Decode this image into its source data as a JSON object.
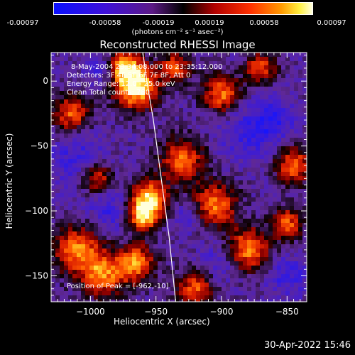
{
  "colorbar": {
    "ticks": [
      "-0.00097",
      "-0.00058",
      "-0.00019",
      "0.00019",
      "0.00058",
      "0.00097"
    ],
    "units": "(photons cm⁻² s⁻¹ asec⁻²)"
  },
  "chart_data": {
    "type": "heatmap",
    "title": "Reconstructed RHESSI Image",
    "xlabel": "Heliocentric X (arcsec)",
    "ylabel": "Heliocentric Y (arcsec)",
    "xlim": [
      -1030,
      -835
    ],
    "ylim": [
      -170,
      22
    ],
    "x_ticks": [
      -1000,
      -950,
      -900,
      -850
    ],
    "y_ticks": [
      0,
      -50,
      -100,
      -150
    ],
    "x_tick_labels": [
      "−1000",
      "−950",
      "−900",
      "−850"
    ],
    "y_tick_labels": [
      "0",
      "−50",
      "−100",
      "−150"
    ],
    "color_range": [
      -0.00097,
      0.00097
    ],
    "peak_position": [
      -962,
      -10
    ],
    "annotations": [
      "8-May-2004 23:34:08.000 to 23:35:12.000",
      "Detectors: 3F 4F 5F 6F 7F 8F, Att 0",
      "Energy Range: 12.0 - 25.0 keV",
      "Clean    Total counts: 780.",
      "Position of Peak = [-962,-10]"
    ],
    "limb_curve": [
      [
        -960,
        22
      ],
      [
        -957,
        0
      ],
      [
        -952,
        -30
      ],
      [
        -948,
        -60
      ],
      [
        -944,
        -90
      ],
      [
        -940,
        -120
      ],
      [
        -937,
        -150
      ],
      [
        -935,
        -170
      ]
    ],
    "hot_regions": [
      {
        "x": -965,
        "y": -5,
        "r": 14,
        "v": 1.0
      },
      {
        "x": -975,
        "y": 12,
        "r": 10,
        "v": 0.75
      },
      {
        "x": -955,
        "y": -90,
        "r": 12,
        "v": 0.8
      },
      {
        "x": -960,
        "y": -105,
        "r": 10,
        "v": 0.65
      },
      {
        "x": -930,
        "y": -60,
        "r": 14,
        "v": 0.55
      },
      {
        "x": -900,
        "y": -10,
        "r": 12,
        "v": 0.6
      },
      {
        "x": -905,
        "y": -95,
        "r": 14,
        "v": 0.6
      },
      {
        "x": -880,
        "y": -130,
        "r": 14,
        "v": 0.65
      },
      {
        "x": -1010,
        "y": -130,
        "r": 16,
        "v": 0.6
      },
      {
        "x": -990,
        "y": -150,
        "r": 14,
        "v": 0.55
      },
      {
        "x": -965,
        "y": -140,
        "r": 12,
        "v": 0.65
      },
      {
        "x": -1015,
        "y": -25,
        "r": 12,
        "v": 0.5
      },
      {
        "x": -845,
        "y": -65,
        "r": 12,
        "v": 0.55
      },
      {
        "x": -850,
        "y": -110,
        "r": 10,
        "v": 0.5
      },
      {
        "x": -995,
        "y": -75,
        "r": 10,
        "v": 0.45
      },
      {
        "x": -920,
        "y": -160,
        "r": 12,
        "v": 0.5
      },
      {
        "x": -935,
        "y": 10,
        "r": 10,
        "v": 0.45
      },
      {
        "x": -870,
        "y": 10,
        "r": 10,
        "v": 0.45
      }
    ],
    "cold_regions": [
      {
        "x": -1010,
        "y": -60,
        "r": 18
      },
      {
        "x": -985,
        "y": -100,
        "r": 16
      },
      {
        "x": -880,
        "y": -40,
        "r": 20
      },
      {
        "x": -860,
        "y": -30,
        "r": 14
      },
      {
        "x": -900,
        "y": -140,
        "r": 14
      },
      {
        "x": -850,
        "y": -150,
        "r": 14
      },
      {
        "x": -990,
        "y": 10,
        "r": 12
      },
      {
        "x": -925,
        "y": -105,
        "r": 10
      }
    ]
  },
  "footer": {
    "timestamp": "30-Apr-2022 15:46"
  }
}
